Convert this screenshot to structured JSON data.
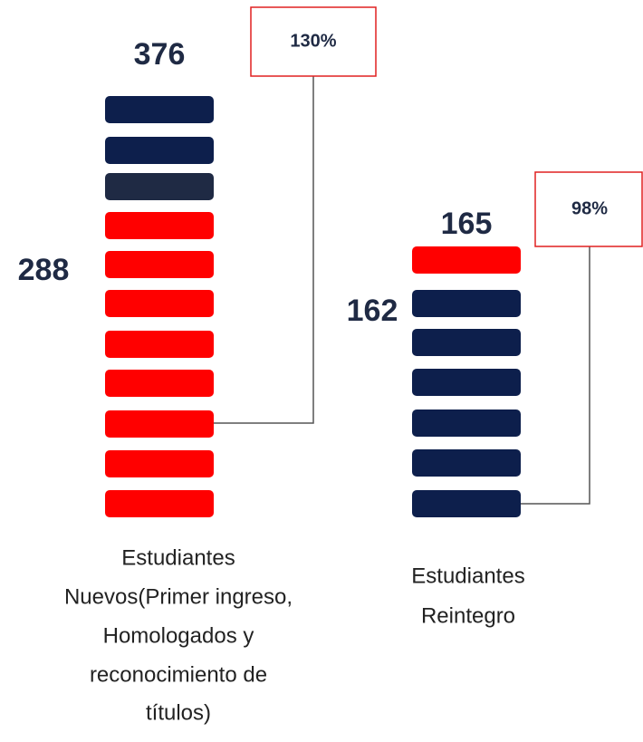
{
  "groups": [
    {
      "total": "376",
      "base": "288",
      "percent": "130%",
      "label": [
        "Estudiantes",
        "Nuevos(Primer ingreso,",
        "Homologados y",
        "reconocimiento de",
        "títulos)"
      ]
    },
    {
      "total": "165",
      "base": "162",
      "percent": "98%",
      "label": [
        "Estudiantes",
        "Reintegro"
      ]
    }
  ]
}
